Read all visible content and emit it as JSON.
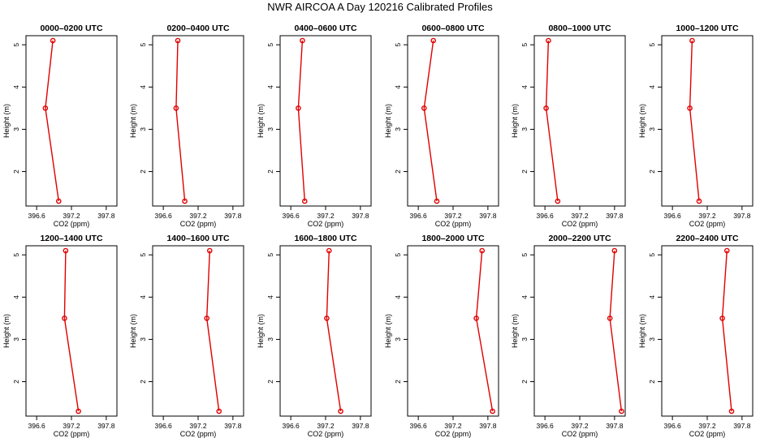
{
  "page_title": "NWR AIRCOA A  Day 120216  Calibrated Profiles",
  "colors": {
    "series": "#e00000",
    "axis": "#000000",
    "background": "#ffffff"
  },
  "chart_data": [
    {
      "type": "line",
      "title": "0000–0200 UTC",
      "xlabel": "CO2 (ppm)",
      "ylabel": "Height (m)",
      "xlim": [
        396.5,
        397.9
      ],
      "ylim": [
        1.3,
        5.1
      ],
      "x_ticks": [
        396.6,
        397.2,
        397.8
      ],
      "x_tick_labels": [
        "396.6",
        "397.2",
        "397.8"
      ],
      "y_ticks": [
        2,
        3,
        4,
        5
      ],
      "points": [
        {
          "height": 5.1,
          "co2": 396.88
        },
        {
          "height": 3.5,
          "co2": 396.75
        },
        {
          "height": 1.3,
          "co2": 396.98
        }
      ]
    },
    {
      "type": "line",
      "title": "0200–0400 UTC",
      "xlabel": "CO2 (ppm)",
      "ylabel": "Height (m)",
      "xlim": [
        396.5,
        397.9
      ],
      "ylim": [
        1.3,
        5.1
      ],
      "x_ticks": [
        396.6,
        397.2,
        397.8
      ],
      "x_tick_labels": [
        "396.6",
        "397.2",
        "397.8"
      ],
      "y_ticks": [
        2,
        3,
        4,
        5
      ],
      "points": [
        {
          "height": 5.1,
          "co2": 396.85
        },
        {
          "height": 3.5,
          "co2": 396.82
        },
        {
          "height": 1.3,
          "co2": 396.97
        }
      ]
    },
    {
      "type": "line",
      "title": "0400–0600 UTC",
      "xlabel": "CO2 (ppm)",
      "ylabel": "Height (m)",
      "xlim": [
        396.5,
        397.9
      ],
      "ylim": [
        1.3,
        5.1
      ],
      "x_ticks": [
        396.6,
        397.2,
        397.8
      ],
      "x_tick_labels": [
        "396.6",
        "397.2",
        "397.8"
      ],
      "y_ticks": [
        2,
        3,
        4,
        5
      ],
      "points": [
        {
          "height": 5.1,
          "co2": 396.8
        },
        {
          "height": 3.5,
          "co2": 396.73
        },
        {
          "height": 1.3,
          "co2": 396.84
        }
      ]
    },
    {
      "type": "line",
      "title": "0600–0800 UTC",
      "xlabel": "CO2 (ppm)",
      "ylabel": "Height (m)",
      "xlim": [
        396.5,
        397.9
      ],
      "ylim": [
        1.3,
        5.1
      ],
      "x_ticks": [
        396.6,
        397.2,
        397.8
      ],
      "x_tick_labels": [
        "396.6",
        "397.2",
        "397.8"
      ],
      "y_ticks": [
        2,
        3,
        4,
        5
      ],
      "points": [
        {
          "height": 5.1,
          "co2": 396.86
        },
        {
          "height": 3.5,
          "co2": 396.7
        },
        {
          "height": 1.3,
          "co2": 396.92
        }
      ]
    },
    {
      "type": "line",
      "title": "0800–1000 UTC",
      "xlabel": "CO2 (ppm)",
      "ylabel": "Height (m)",
      "xlim": [
        396.5,
        397.9
      ],
      "ylim": [
        1.3,
        5.1
      ],
      "x_ticks": [
        396.6,
        397.2,
        397.8
      ],
      "x_tick_labels": [
        "396.6",
        "397.2",
        "397.8"
      ],
      "y_ticks": [
        2,
        3,
        4,
        5
      ],
      "points": [
        {
          "height": 5.1,
          "co2": 396.66
        },
        {
          "height": 3.5,
          "co2": 396.62
        },
        {
          "height": 1.3,
          "co2": 396.82
        }
      ]
    },
    {
      "type": "line",
      "title": "1000–1200 UTC",
      "xlabel": "CO2 (ppm)",
      "ylabel": "Height (m)",
      "xlim": [
        396.5,
        397.9
      ],
      "ylim": [
        1.3,
        5.1
      ],
      "x_ticks": [
        396.6,
        397.2,
        397.8
      ],
      "x_tick_labels": [
        "396.6",
        "397.2",
        "397.8"
      ],
      "y_ticks": [
        2,
        3,
        4,
        5
      ],
      "points": [
        {
          "height": 5.1,
          "co2": 396.94
        },
        {
          "height": 3.5,
          "co2": 396.9
        },
        {
          "height": 1.3,
          "co2": 397.06
        }
      ]
    },
    {
      "type": "line",
      "title": "1200–1400 UTC",
      "xlabel": "CO2 (ppm)",
      "ylabel": "Height (m)",
      "xlim": [
        396.5,
        397.9
      ],
      "ylim": [
        1.3,
        5.1
      ],
      "x_ticks": [
        396.6,
        397.2,
        397.8
      ],
      "x_tick_labels": [
        "396.6",
        "397.2",
        "397.8"
      ],
      "y_ticks": [
        2,
        3,
        4,
        5
      ],
      "points": [
        {
          "height": 5.1,
          "co2": 397.1
        },
        {
          "height": 3.5,
          "co2": 397.08
        },
        {
          "height": 1.3,
          "co2": 397.32
        }
      ]
    },
    {
      "type": "line",
      "title": "1400–1600 UTC",
      "xlabel": "CO2 (ppm)",
      "ylabel": "Height (m)",
      "xlim": [
        396.5,
        397.9
      ],
      "ylim": [
        1.3,
        5.1
      ],
      "x_ticks": [
        396.6,
        397.2,
        397.8
      ],
      "x_tick_labels": [
        "396.6",
        "397.2",
        "397.8"
      ],
      "y_ticks": [
        2,
        3,
        4,
        5
      ],
      "points": [
        {
          "height": 5.1,
          "co2": 397.4
        },
        {
          "height": 3.5,
          "co2": 397.35
        },
        {
          "height": 1.3,
          "co2": 397.56
        }
      ]
    },
    {
      "type": "line",
      "title": "1600–1800 UTC",
      "xlabel": "CO2 (ppm)",
      "ylabel": "Height (m)",
      "xlim": [
        396.5,
        397.9
      ],
      "ylim": [
        1.3,
        5.1
      ],
      "x_ticks": [
        396.6,
        397.2,
        397.8
      ],
      "x_tick_labels": [
        "396.6",
        "397.2",
        "397.8"
      ],
      "y_ticks": [
        2,
        3,
        4,
        5
      ],
      "points": [
        {
          "height": 5.1,
          "co2": 397.26
        },
        {
          "height": 3.5,
          "co2": 397.22
        },
        {
          "height": 1.3,
          "co2": 397.46
        }
      ]
    },
    {
      "type": "line",
      "title": "1800–2000 UTC",
      "xlabel": "CO2 (ppm)",
      "ylabel": "Height (m)",
      "xlim": [
        396.5,
        397.9
      ],
      "ylim": [
        1.3,
        5.1
      ],
      "x_ticks": [
        396.6,
        397.2,
        397.8
      ],
      "x_tick_labels": [
        "396.6",
        "397.2",
        "397.8"
      ],
      "y_ticks": [
        2,
        3,
        4,
        5
      ],
      "points": [
        {
          "height": 5.1,
          "co2": 397.7
        },
        {
          "height": 3.5,
          "co2": 397.6
        },
        {
          "height": 1.3,
          "co2": 397.88
        }
      ]
    },
    {
      "type": "line",
      "title": "2000–2200 UTC",
      "xlabel": "CO2 (ppm)",
      "ylabel": "Height (m)",
      "xlim": [
        396.5,
        397.9
      ],
      "ylim": [
        1.3,
        5.1
      ],
      "x_ticks": [
        396.6,
        397.2,
        397.8
      ],
      "x_tick_labels": [
        "396.6",
        "397.2",
        "397.8"
      ],
      "y_ticks": [
        2,
        3,
        4,
        5
      ],
      "points": [
        {
          "height": 5.1,
          "co2": 397.8
        },
        {
          "height": 3.5,
          "co2": 397.72
        },
        {
          "height": 1.3,
          "co2": 397.92
        }
      ]
    },
    {
      "type": "line",
      "title": "2200–2400 UTC",
      "xlabel": "CO2 (ppm)",
      "ylabel": "Height (m)",
      "xlim": [
        396.5,
        397.9
      ],
      "ylim": [
        1.3,
        5.1
      ],
      "x_ticks": [
        396.6,
        397.2,
        397.8
      ],
      "x_tick_labels": [
        "396.6",
        "397.2",
        "397.8"
      ],
      "y_ticks": [
        2,
        3,
        4,
        5
      ],
      "points": [
        {
          "height": 5.1,
          "co2": 397.54
        },
        {
          "height": 3.5,
          "co2": 397.46
        },
        {
          "height": 1.3,
          "co2": 397.62
        }
      ]
    }
  ]
}
